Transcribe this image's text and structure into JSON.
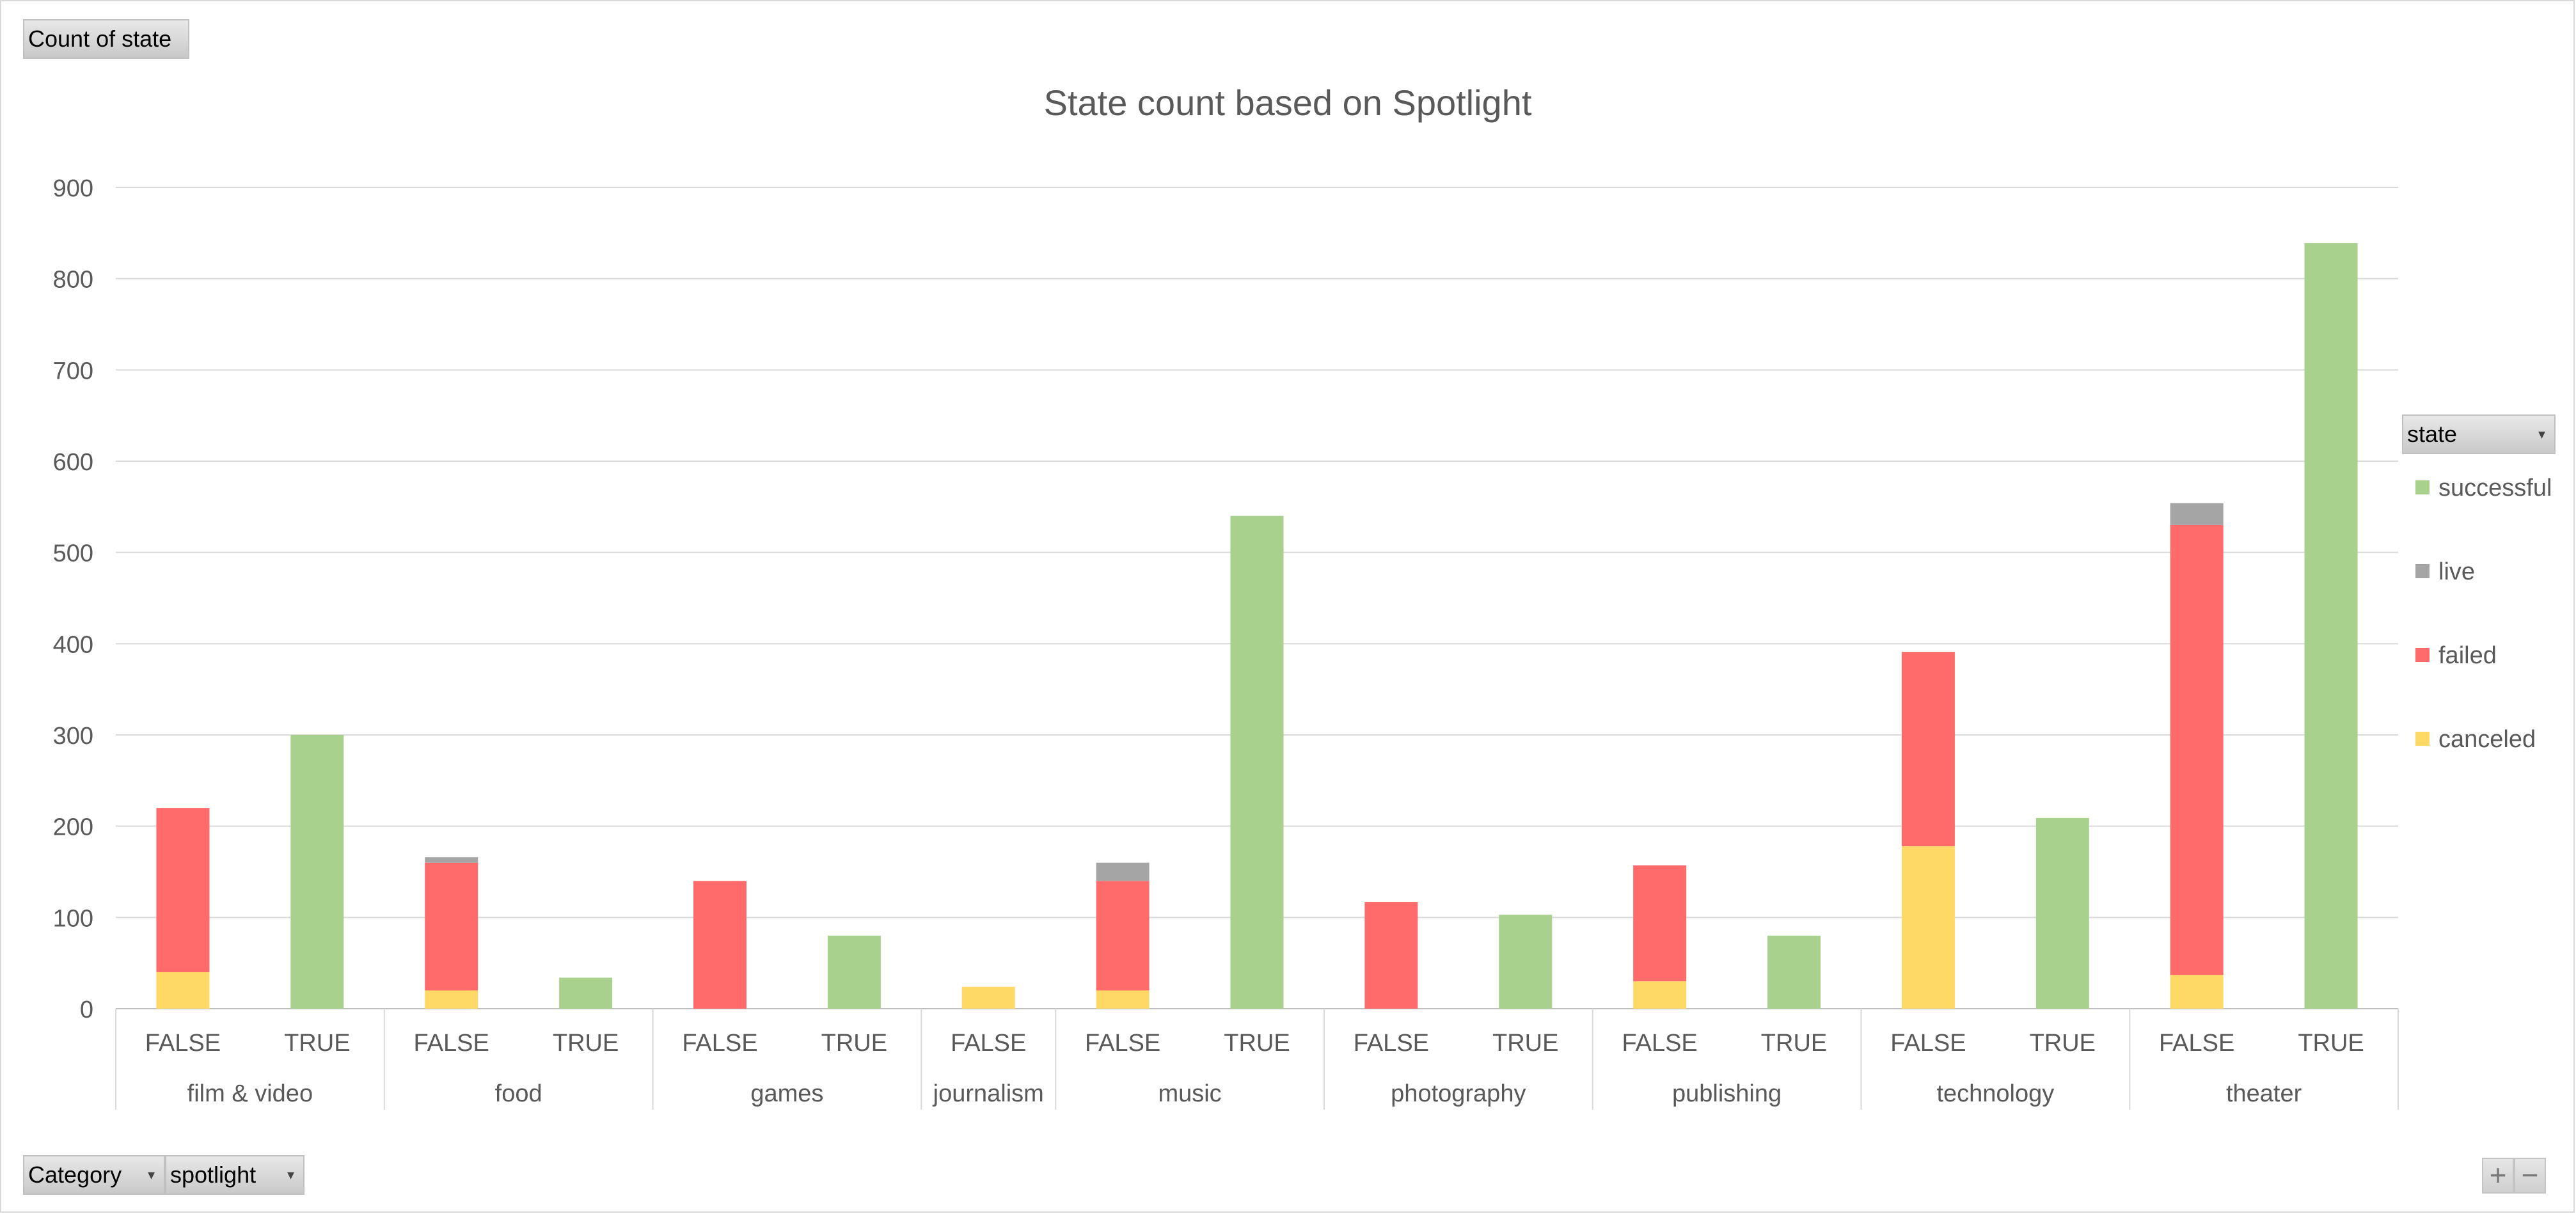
{
  "values_field": {
    "label": "Count of state"
  },
  "legend_field": {
    "label": "state"
  },
  "axis_fields": [
    {
      "label": "Category"
    },
    {
      "label": "spotlight"
    }
  ],
  "zoom": {
    "plus": "+",
    "minus": "−"
  },
  "chart_data": {
    "type": "bar",
    "stacked": true,
    "title": "State count based on Spotlight",
    "xlabel": "",
    "ylabel": "",
    "ylim": [
      0,
      900
    ],
    "yticks": [
      0,
      100,
      200,
      300,
      400,
      500,
      600,
      700,
      800,
      900
    ],
    "grid": true,
    "legend_position": "right",
    "groups": [
      {
        "name": "film & video",
        "categories": [
          "FALSE",
          "TRUE"
        ]
      },
      {
        "name": "food",
        "categories": [
          "FALSE",
          "TRUE"
        ]
      },
      {
        "name": "games",
        "categories": [
          "FALSE",
          "TRUE"
        ]
      },
      {
        "name": "journalism",
        "categories": [
          "FALSE"
        ]
      },
      {
        "name": "music",
        "categories": [
          "FALSE",
          "TRUE"
        ]
      },
      {
        "name": "photography",
        "categories": [
          "FALSE",
          "TRUE"
        ]
      },
      {
        "name": "publishing",
        "categories": [
          "FALSE",
          "TRUE"
        ]
      },
      {
        "name": "technology",
        "categories": [
          "FALSE",
          "TRUE"
        ]
      },
      {
        "name": "theater",
        "categories": [
          "FALSE",
          "TRUE"
        ]
      }
    ],
    "categories": [
      "FALSE",
      "TRUE",
      "FALSE",
      "TRUE",
      "FALSE",
      "TRUE",
      "FALSE",
      "FALSE",
      "TRUE",
      "FALSE",
      "TRUE",
      "FALSE",
      "TRUE",
      "FALSE",
      "TRUE",
      "FALSE",
      "TRUE"
    ],
    "series": [
      {
        "name": "canceled",
        "color": "#FFD966",
        "values": [
          40,
          0,
          20,
          0,
          0,
          0,
          24,
          20,
          0,
          0,
          0,
          30,
          0,
          178,
          0,
          37,
          0
        ]
      },
      {
        "name": "failed",
        "color": "#FF6B6B",
        "values": [
          180,
          0,
          140,
          0,
          140,
          0,
          0,
          120,
          0,
          117,
          0,
          127,
          0,
          213,
          0,
          493,
          0
        ]
      },
      {
        "name": "live",
        "color": "#A5A5A5",
        "values": [
          0,
          0,
          6,
          0,
          0,
          0,
          0,
          20,
          0,
          0,
          0,
          0,
          0,
          0,
          0,
          24,
          0
        ]
      },
      {
        "name": "successful",
        "color": "#A9D18E",
        "values": [
          0,
          300,
          0,
          34,
          0,
          80,
          0,
          0,
          540,
          0,
          103,
          0,
          80,
          0,
          209,
          0,
          839
        ]
      }
    ],
    "legend_order": [
      "successful",
      "live",
      "failed",
      "canceled"
    ]
  }
}
